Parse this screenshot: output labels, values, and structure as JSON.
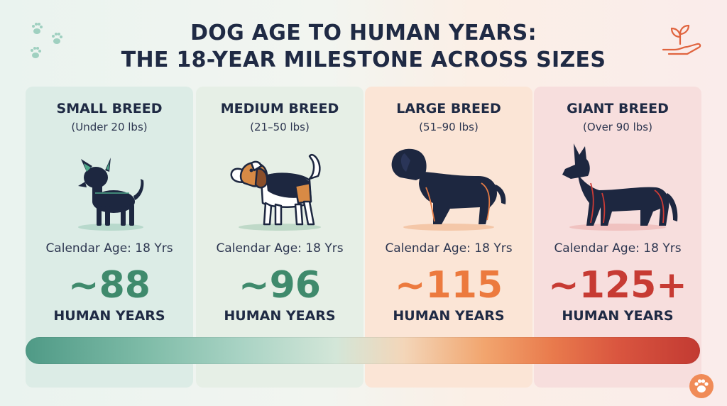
{
  "title": {
    "line1": "DOG AGE TO HUMAN YEARS:",
    "line2": "THE 18-YEAR MILESTONE ACROSS SIZES"
  },
  "breeds": [
    {
      "name": "SMALL BREED",
      "weight": "(Under 20 lbs)",
      "calendar": "Calendar Age: 18 Yrs",
      "human_age": "~88",
      "unit": "HUMAN YEARS",
      "color": "#3f8a6c"
    },
    {
      "name": "MEDIUM BREED",
      "weight": "(21–50 lbs)",
      "calendar": "Calendar Age: 18 Yrs",
      "human_age": "~96",
      "unit": "HUMAN YEARS",
      "color": "#3f8a6c"
    },
    {
      "name": "LARGE BREED",
      "weight": "(51–90 lbs)",
      "calendar": "Calendar Age: 18 Yrs",
      "human_age": "~115",
      "unit": "HUMAN YEARS",
      "color": "#ec7a3e"
    },
    {
      "name": "GIANT BREED",
      "weight": "(Over 90 lbs)",
      "calendar": "Calendar Age: 18 Yrs",
      "human_age": "~125+",
      "unit": "HUMAN YEARS",
      "color": "#c73b33"
    }
  ],
  "icons": {
    "top_left": "paw-prints-icon",
    "top_right": "hand-plant-icon",
    "bottom_right": "paw-badge-icon"
  }
}
